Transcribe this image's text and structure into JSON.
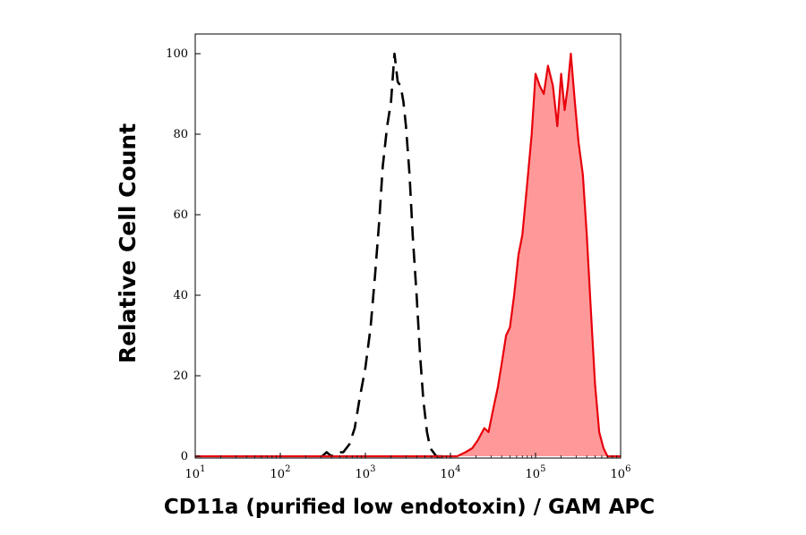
{
  "chart_data": {
    "type": "area",
    "title": "",
    "xlabel": "CD11a (purified low endotoxin) / GAM APC",
    "ylabel": "Relative Cell Count",
    "x_scale": "log",
    "xlim": [
      10,
      1000000
    ],
    "ylim": [
      0,
      100
    ],
    "x_ticks": [
      {
        "value": 10,
        "base": "10",
        "exp": "1"
      },
      {
        "value": 100,
        "base": "10",
        "exp": "2"
      },
      {
        "value": 1000,
        "base": "10",
        "exp": "3"
      },
      {
        "value": 10000,
        "base": "10",
        "exp": "4"
      },
      {
        "value": 100000,
        "base": "10",
        "exp": "5"
      },
      {
        "value": 1000000,
        "base": "10",
        "exp": "6"
      }
    ],
    "y_ticks": [
      {
        "value": 0,
        "label": "0"
      },
      {
        "value": 20,
        "label": "20"
      },
      {
        "value": 40,
        "label": "40"
      },
      {
        "value": 60,
        "label": "60"
      },
      {
        "value": 80,
        "label": "80"
      },
      {
        "value": 100,
        "label": "100"
      }
    ],
    "grid": false,
    "legend": false,
    "series": [
      {
        "style": "dashed-line",
        "color": "#000000",
        "x": [
          310,
          350,
          400,
          450,
          550,
          650,
          750,
          850,
          1000,
          1150,
          1300,
          1450,
          1600,
          1800,
          2000,
          2200,
          2400,
          2600,
          2800,
          3000,
          3300,
          3600,
          4000,
          4400,
          4800,
          5300,
          5800,
          6300,
          6800,
          7300,
          8000
        ],
        "y": [
          0,
          1,
          0,
          1,
          1,
          3,
          7,
          14,
          22,
          32,
          45,
          58,
          72,
          82,
          88,
          100,
          93,
          92,
          88,
          82,
          70,
          55,
          40,
          25,
          14,
          6,
          2,
          1,
          0,
          0,
          0
        ]
      },
      {
        "style": "filled",
        "color": "#e8000b",
        "fill": "#ff9999",
        "x": [
          10,
          12000,
          15000,
          18000,
          21000,
          25000,
          28000,
          32000,
          36000,
          40000,
          45000,
          50000,
          56000,
          63000,
          70000,
          80000,
          90000,
          100000,
          112000,
          125000,
          140000,
          160000,
          180000,
          200000,
          220000,
          240000,
          260000,
          290000,
          320000,
          360000,
          400000,
          450000,
          500000,
          560000,
          630000,
          700000,
          800000,
          1000000
        ],
        "y": [
          0,
          0,
          1,
          2,
          4,
          7,
          6,
          12,
          17,
          23,
          30,
          32,
          40,
          50,
          55,
          68,
          80,
          95,
          92,
          90,
          97,
          92,
          82,
          95,
          86,
          92,
          100,
          88,
          78,
          70,
          55,
          35,
          18,
          6,
          2,
          0,
          0,
          0
        ]
      }
    ]
  }
}
